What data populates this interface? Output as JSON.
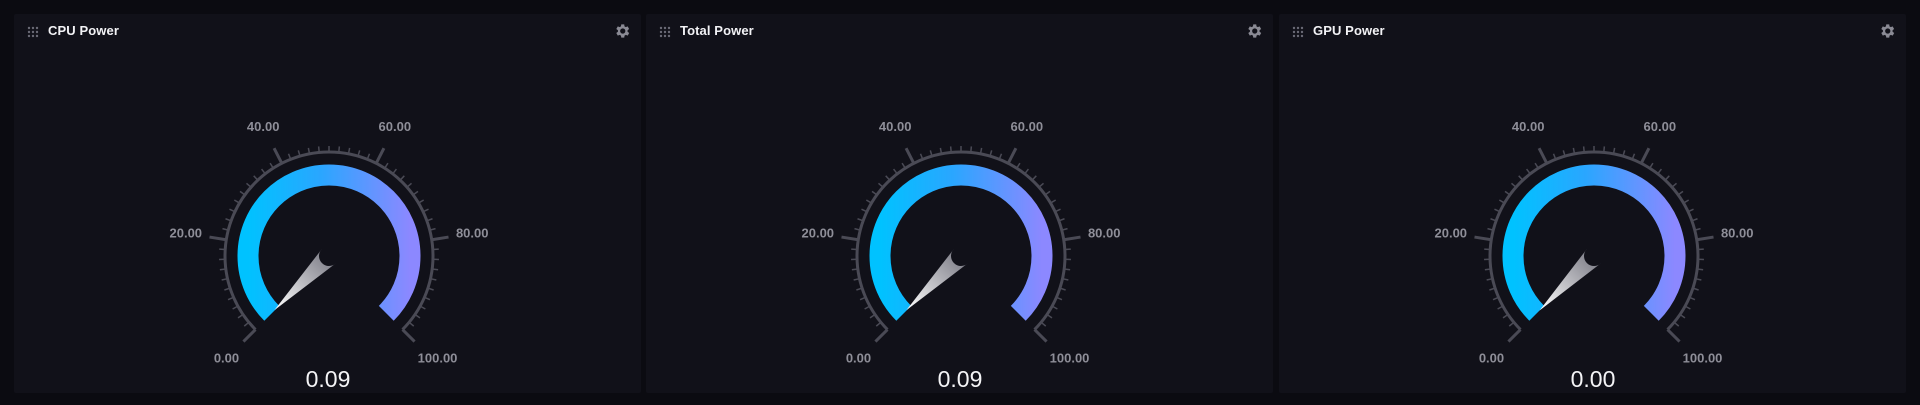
{
  "panels": [
    {
      "title": "CPU Power",
      "value": 0.09,
      "value_display": "0.09",
      "min": 0,
      "max": 100,
      "tick_labels": [
        "0.00",
        "20.00",
        "40.00",
        "60.00",
        "80.00",
        "100.00"
      ],
      "drag_icon": "drag-handle-icon",
      "settings_icon": "gear-icon"
    },
    {
      "title": "Total Power",
      "value": 0.09,
      "value_display": "0.09",
      "min": 0,
      "max": 100,
      "tick_labels": [
        "0.00",
        "20.00",
        "40.00",
        "60.00",
        "80.00",
        "100.00"
      ],
      "drag_icon": "drag-handle-icon",
      "settings_icon": "gear-icon"
    },
    {
      "title": "GPU Power",
      "value": 0.0,
      "value_display": "0.00",
      "min": 0,
      "max": 100,
      "tick_labels": [
        "0.00",
        "20.00",
        "40.00",
        "60.00",
        "80.00",
        "100.00"
      ],
      "drag_icon": "drag-handle-icon",
      "settings_icon": "gear-icon"
    }
  ],
  "colors": {
    "background": "#0b0b11",
    "panel": "#111119",
    "arc_start": "#00c2ff",
    "arc_end": "#8c88ff",
    "ticks": "#4a4a55",
    "tick_label": "#8e8e98",
    "value_text": "#f4f4f6",
    "needle": "#d9d9de"
  }
}
